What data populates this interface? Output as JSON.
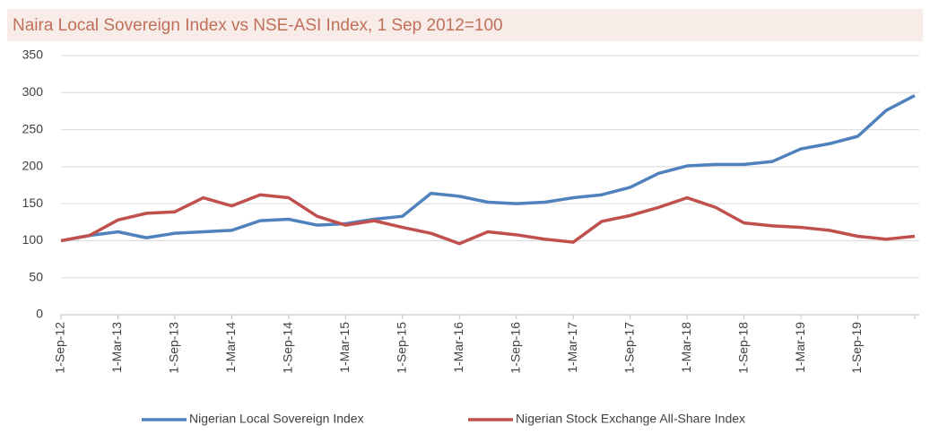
{
  "chart_data": {
    "type": "line",
    "title": "Naira Local Sovereign Index vs NSE-ASI Index, 1 Sep 2012=100",
    "categories": [
      "1-Sep-12",
      null,
      "1-Mar-13",
      null,
      "1-Sep-13",
      null,
      "1-Mar-14",
      null,
      "1-Sep-14",
      null,
      "1-Mar-15",
      null,
      "1-Sep-15",
      null,
      "1-Mar-16",
      null,
      "1-Sep-16",
      null,
      "1-Mar-17",
      null,
      "1-Sep-17",
      null,
      "1-Mar-18",
      null,
      "1-Sep-18",
      null,
      "1-Mar-19",
      null,
      "1-Sep-19",
      null,
      null
    ],
    "series": [
      {
        "name": "Nigerian Local Sovereign Index",
        "color": "#4f81bd",
        "values": [
          100,
          107,
          112,
          104,
          110,
          112,
          114,
          127,
          129,
          121,
          123,
          129,
          133,
          164,
          160,
          152,
          150,
          152,
          158,
          162,
          172,
          191,
          201,
          203,
          203,
          207,
          224,
          231,
          241,
          276,
          296
        ]
      },
      {
        "name": "Nigerian Stock Exchange All-Share Index",
        "color": "#c0504d",
        "values": [
          100,
          107,
          128,
          137,
          139,
          158,
          147,
          162,
          158,
          133,
          121,
          127,
          118,
          110,
          96,
          112,
          108,
          102,
          98,
          126,
          134,
          145,
          158,
          145,
          124,
          120,
          118,
          114,
          106,
          102,
          106
        ]
      }
    ],
    "ylim": [
      0,
      350
    ],
    "yticks": [
      0,
      50,
      100,
      150,
      200,
      250,
      300,
      350
    ],
    "grid": true,
    "legend": "bottom"
  }
}
